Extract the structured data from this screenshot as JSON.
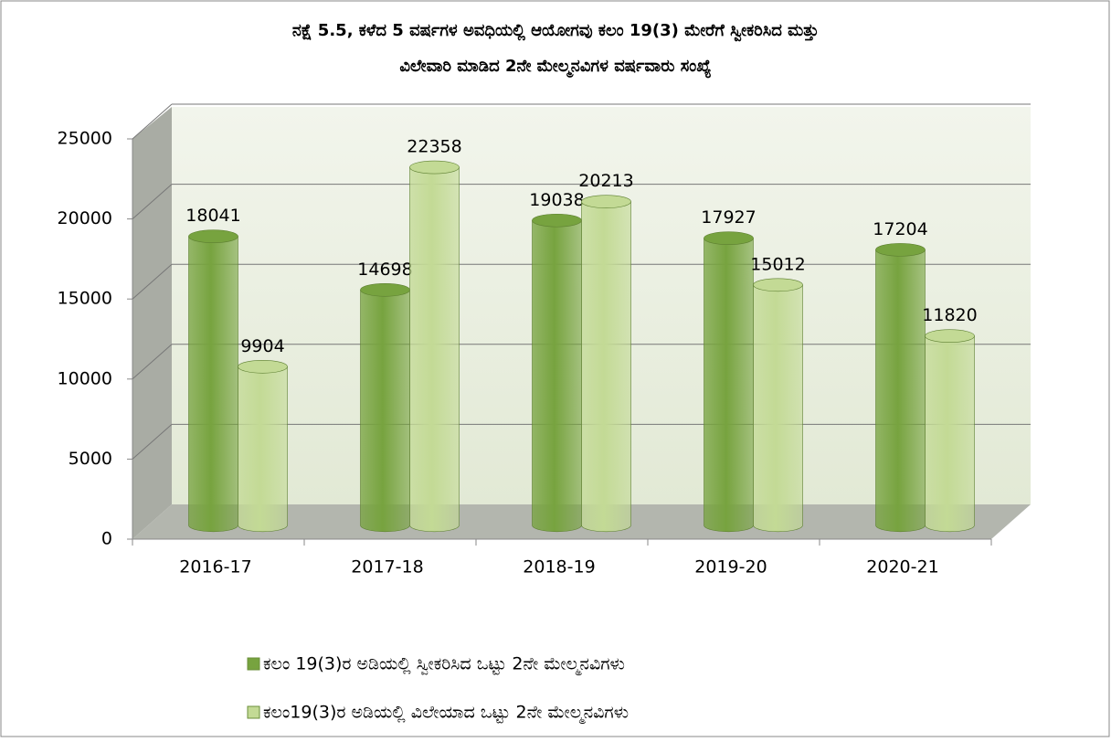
{
  "chart_data": {
    "type": "bar3d",
    "title": [
      "ನಕ್ಷೆ 5.5, ಕಳೆದ 5 ವರ್ಷಗಳ ಅವಧಿಯಲ್ಲಿ ಆಯೋಗವು ಕಲಂ 19(3) ಮೇರೆಗೆ ಸ್ವೀಕರಿಸಿದ ಮತ್ತು",
      "ವಿಲೇವಾರಿ ಮಾಡಿದ 2ನೇ ಮೇಲ್ಮನವಿಗಳ ವರ್ಷವಾರು ಸಂಖ್ಯೆ"
    ],
    "categories": [
      "2016-17",
      "2017-18",
      "2018-19",
      "2019-20",
      "2020-21"
    ],
    "series": [
      {
        "name": "ಕಲಂ 19(3)ರ ಅಡಿಯಲ್ಲಿ ಸ್ವೀಕರಿಸಿದ ಒಟ್ಟು 2ನೇ ಮೇಲ್ಮನವಿಗಳು",
        "color": "#77a33f",
        "values": [
          18041,
          14698,
          19038,
          17927,
          17204
        ]
      },
      {
        "name": "ಕಲಂ19(3)ರ ಅಡಿಯಲ್ಲಿ ವಿಲೇಯಾದ ಒಟ್ಟು 2ನೇ ಮೇಲ್ಮನವಿಗಳು",
        "color": "#c3da95",
        "values": [
          9904,
          22358,
          20213,
          15012,
          11820
        ]
      }
    ],
    "ylim": [
      0,
      25000
    ],
    "yticks": [
      0,
      5000,
      10000,
      15000,
      20000,
      25000
    ],
    "grid": true,
    "legend": "bottom"
  }
}
